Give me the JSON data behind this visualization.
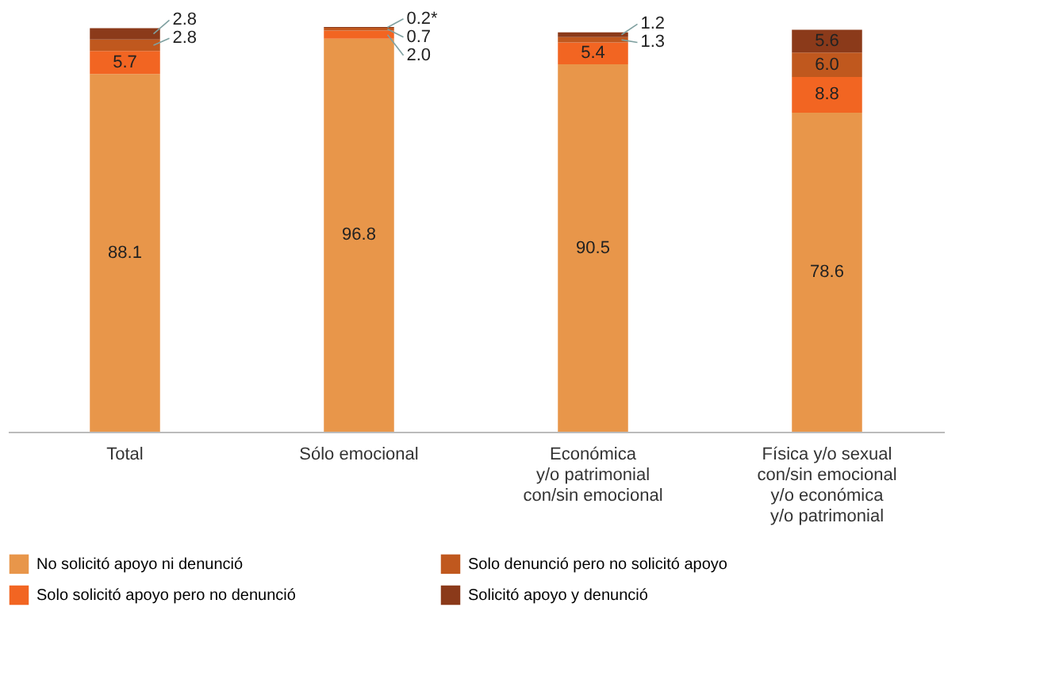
{
  "chart_data": {
    "type": "bar",
    "stacked": true,
    "legend": "bottom",
    "grid": false,
    "tick_labels": "x",
    "categories": [
      "Total",
      "Sólo emocional",
      "Económica\ny/o patrimonial\ncon/sin emocional",
      "Física y/o sexual\ncon/sin emocional\ny/o económica\ny/o patrimonial"
    ],
    "series": [
      {
        "name": "No solicitó apoyo ni denunció",
        "color": "#e8964a",
        "values": [
          88.1,
          96.8,
          90.5,
          78.6
        ],
        "value_labels": [
          "88.1",
          "96.8",
          "90.5",
          "78.6"
        ]
      },
      {
        "name": "Solo solicitó apoyo pero no denunció",
        "color": "#f26522",
        "values": [
          5.7,
          2.0,
          5.4,
          8.8
        ],
        "value_labels": [
          "5.7",
          "2.0",
          "5.4",
          "8.8"
        ]
      },
      {
        "name": "Solo denunció pero no solicitó apoyo",
        "color": "#c0581e",
        "values": [
          2.8,
          0.7,
          1.3,
          6.0
        ],
        "value_labels": [
          "2.8",
          "0.7",
          "1.3",
          "6.0"
        ]
      },
      {
        "name": "Solicitó apoyo y denunció",
        "color": "#8b3a1a",
        "values": [
          2.8,
          0.2,
          1.2,
          5.6
        ],
        "value_labels": [
          "2.8",
          "0.2*",
          "1.2",
          "5.6"
        ]
      }
    ]
  }
}
